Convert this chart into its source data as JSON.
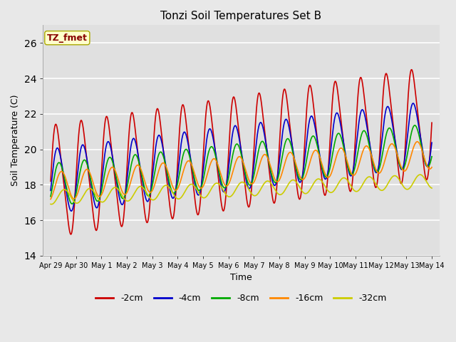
{
  "title": "Tonzi Soil Temperatures Set B",
  "xlabel": "Time",
  "ylabel": "Soil Temperature (C)",
  "ylim": [
    14,
    27
  ],
  "background_color": "#e8e8e8",
  "plot_bg_color": "#e0e0e0",
  "series": [
    {
      "label": "-2cm",
      "color": "#cc0000",
      "amplitude": 3.0,
      "phase": 0.0,
      "trend": 0.22,
      "base": 18.2,
      "skew": 0.6
    },
    {
      "label": "-4cm",
      "color": "#0000cc",
      "amplitude": 1.8,
      "phase": 0.25,
      "trend": 0.18,
      "base": 18.2,
      "skew": 0.3
    },
    {
      "label": "-8cm",
      "color": "#00aa00",
      "amplitude": 1.2,
      "phase": 0.55,
      "trend": 0.15,
      "base": 18.0,
      "skew": 0.1
    },
    {
      "label": "-16cm",
      "color": "#ff8800",
      "amplitude": 0.8,
      "phase": 1.1,
      "trend": 0.12,
      "base": 17.9,
      "skew": 0.0
    },
    {
      "label": "-32cm",
      "color": "#cccc00",
      "amplitude": 0.4,
      "phase": 1.8,
      "trend": 0.06,
      "base": 17.3,
      "skew": 0.0
    }
  ],
  "tick_labels": [
    "Apr 29",
    "Apr 30",
    "May 1",
    "May 2",
    "May 3",
    "May 4",
    "May 5",
    "May 6",
    "May 7",
    "May 8",
    "May 9",
    "May 10",
    "May 11",
    "May 12",
    "May 13",
    "May 14"
  ],
  "tick_positions": [
    0,
    1,
    2,
    3,
    4,
    5,
    6,
    7,
    8,
    9,
    10,
    11,
    12,
    13,
    14,
    15
  ],
  "annotation_text": "TZ_fmet",
  "annotation_color": "#880000",
  "annotation_bg": "#ffffcc",
  "line_width": 1.2
}
